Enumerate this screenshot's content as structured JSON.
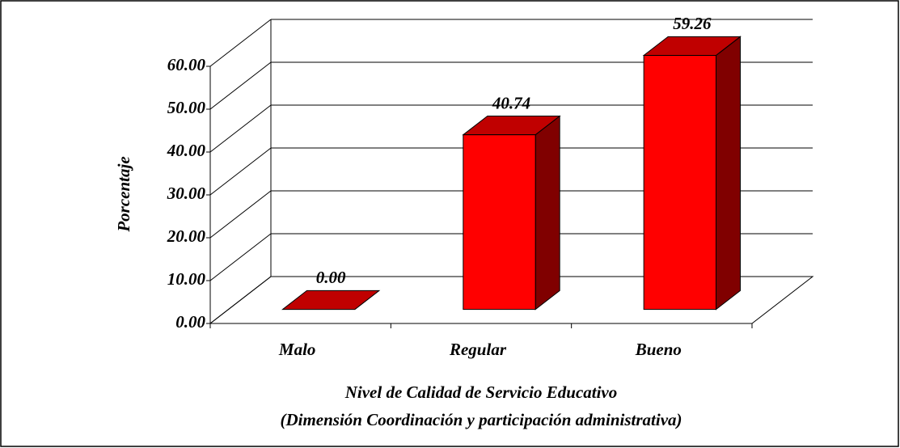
{
  "chart_data": {
    "type": "bar3d",
    "categories": [
      "Malo",
      "Regular",
      "Bueno"
    ],
    "values": [
      0,
      40.74,
      59.26
    ],
    "value_labels": [
      "0.00",
      "40.74",
      "59.26"
    ],
    "color": "#ff0000",
    "ylabel": "Porcentaje",
    "xlabel": [
      "Nivel de Calidad de Servicio Educativo",
      "(Dimensión Coordinación y participación administrativa)"
    ],
    "ylim": [
      0,
      60
    ],
    "yticks": [
      {
        "value": 0,
        "label": "0.00"
      },
      {
        "value": 10,
        "label": "10.00"
      },
      {
        "value": 20,
        "label": "20.00"
      },
      {
        "value": 30,
        "label": "30.00"
      },
      {
        "value": 40,
        "label": "40.00"
      },
      {
        "value": 50,
        "label": "50.00"
      },
      {
        "value": 60,
        "label": "60.00"
      }
    ],
    "grid": true
  }
}
